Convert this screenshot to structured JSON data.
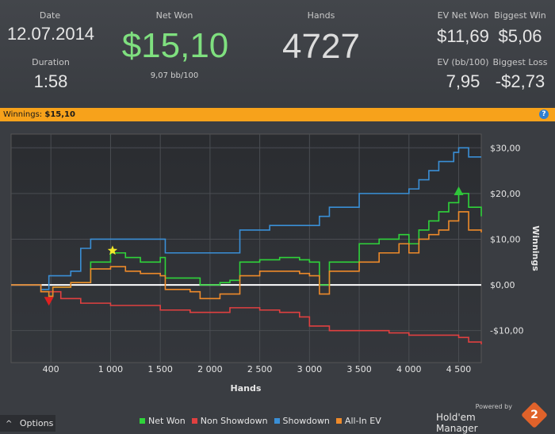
{
  "stats": {
    "date_label": "Date",
    "date_value": "12.07.2014",
    "duration_label": "Duration",
    "duration_value": "1:58",
    "net_won_label": "Net Won",
    "net_won_value": "$15,10",
    "bb_per_100": "9,07 bb/100",
    "hands_label": "Hands",
    "hands_value": "4727",
    "ev_net_won_label": "EV Net Won",
    "ev_net_won_value": "$11,69",
    "biggest_win_label": "Biggest Win",
    "biggest_win_value": "$5,06",
    "ev_bb100_label": "EV (bb/100)",
    "ev_bb100_value": "7,95",
    "biggest_loss_label": "Biggest Loss",
    "biggest_loss_value": "-$2,73"
  },
  "bar": {
    "winnings_label": "Winnings:",
    "winnings_value": "$15,10",
    "help_icon": "?"
  },
  "footer": {
    "options_icon": "^",
    "options_label": "Options",
    "powered_by": "Powered by",
    "brand_name": "Hold'em Manager",
    "brand_number": "2"
  },
  "chart_data": {
    "type": "line",
    "xlabel": "Hands",
    "ylabel": "Winnings",
    "xlim": [
      0,
      4727
    ],
    "ylim": [
      -17,
      33
    ],
    "x_ticks": [
      400,
      1000,
      1500,
      2000,
      2500,
      3000,
      3500,
      4000,
      4500
    ],
    "x_tick_labels": [
      "400",
      "1 000",
      "1 500",
      "2 000",
      "2 500",
      "3 000",
      "3 500",
      "4 000",
      "4 500"
    ],
    "y_ticks": [
      -10,
      0,
      10,
      20,
      30
    ],
    "y_tick_labels": [
      "-$10,00",
      "$0,00",
      "$10,00",
      "$20,00",
      "$30,00"
    ],
    "grid": true,
    "legend_position": "bottom",
    "series": [
      {
        "name": "Net Won",
        "color": "#2fd33a",
        "x": [
          0,
          150,
          300,
          380,
          420,
          600,
          800,
          1000,
          1150,
          1300,
          1500,
          1550,
          1800,
          1900,
          2100,
          2200,
          2300,
          2500,
          2700,
          2900,
          3000,
          3100,
          3200,
          3500,
          3700,
          3900,
          4000,
          4100,
          4200,
          4300,
          4400,
          4500,
          4600,
          4727
        ],
        "y": [
          0,
          0,
          -1.5,
          -2.5,
          -0.5,
          0.5,
          5,
          7,
          6,
          5,
          6,
          1.5,
          1.5,
          0,
          0.5,
          1,
          5,
          5.5,
          6,
          5.5,
          5,
          0,
          5,
          9,
          10,
          11,
          9,
          12,
          14,
          16,
          18,
          20,
          17,
          15
        ]
      },
      {
        "name": "Non Showdown",
        "color": "#e04040",
        "x": [
          0,
          150,
          300,
          500,
          700,
          1000,
          1200,
          1500,
          1800,
          2000,
          2200,
          2500,
          2700,
          2900,
          3000,
          3200,
          3500,
          3800,
          4000,
          4200,
          4500,
          4600,
          4727
        ],
        "y": [
          0,
          0,
          -1.5,
          -3,
          -4,
          -4.5,
          -4.5,
          -5.5,
          -6,
          -6,
          -5,
          -5.5,
          -6,
          -7,
          -9,
          -10,
          -10,
          -10.5,
          -11,
          -11,
          -11.5,
          -12.5,
          -13
        ]
      },
      {
        "name": "Showdown",
        "color": "#3a8fd6",
        "x": [
          0,
          150,
          300,
          380,
          420,
          600,
          700,
          800,
          1000,
          1150,
          1300,
          1500,
          1550,
          1900,
          2000,
          2200,
          2300,
          2600,
          2800,
          3000,
          3100,
          3200,
          3500,
          3700,
          3900,
          4000,
          4100,
          4200,
          4300,
          4450,
          4500,
          4600,
          4727
        ],
        "y": [
          0,
          0,
          -1,
          2,
          2,
          3,
          8,
          10,
          10,
          10,
          10,
          10,
          7,
          7,
          7,
          7,
          12,
          13,
          13,
          13,
          15,
          17,
          20,
          20,
          20,
          21,
          23,
          25,
          27,
          29,
          30,
          28,
          28
        ]
      },
      {
        "name": "All-In EV",
        "color": "#ee8a2a",
        "x": [
          0,
          150,
          300,
          380,
          420,
          600,
          800,
          1000,
          1150,
          1300,
          1500,
          1550,
          1800,
          1900,
          2100,
          2200,
          2300,
          2500,
          2700,
          2900,
          3000,
          3100,
          3200,
          3500,
          3700,
          3900,
          4000,
          4100,
          4200,
          4300,
          4400,
          4500,
          4600,
          4727
        ],
        "y": [
          0,
          0,
          -1.5,
          -2.5,
          -0.5,
          0.5,
          3.5,
          4,
          3,
          2.5,
          2,
          -1,
          -1.5,
          -3,
          -2,
          -2,
          2,
          3,
          3,
          2.5,
          2,
          -2,
          3,
          5,
          7,
          9,
          7,
          10,
          11,
          12,
          14,
          16,
          12,
          11.5
        ]
      }
    ],
    "markers": [
      {
        "shape": "triangle-down",
        "color": "#e02020",
        "x": 380,
        "y": -3.5
      },
      {
        "shape": "star",
        "color": "#f4ea2a",
        "x": 1020,
        "y": 7.5
      },
      {
        "shape": "triangle-up",
        "color": "#2fc53a",
        "x": 4500,
        "y": 20.5
      }
    ]
  }
}
